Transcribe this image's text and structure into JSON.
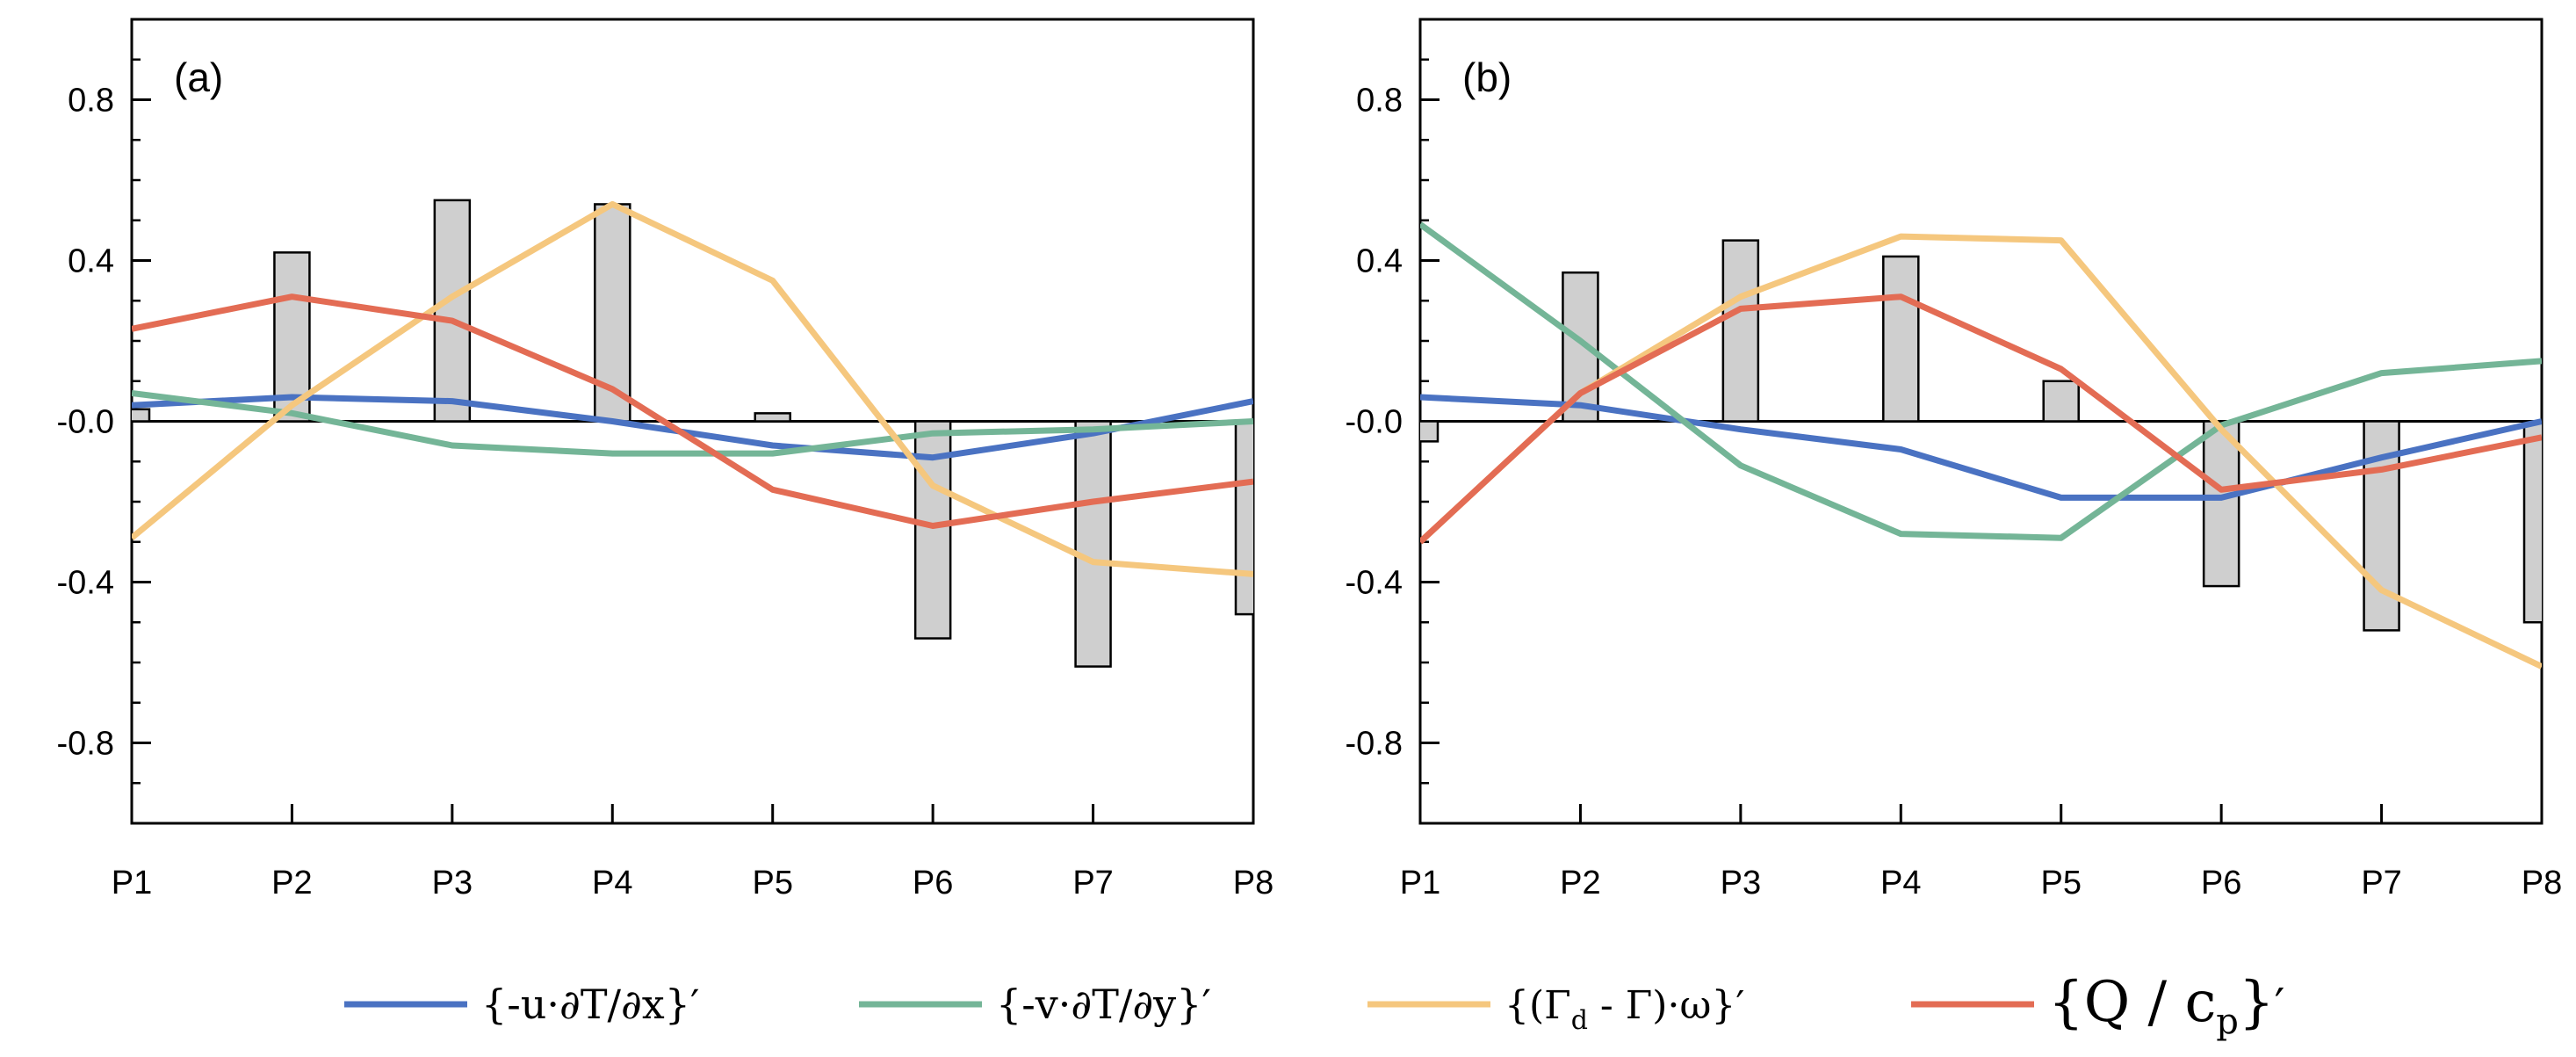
{
  "chart_data": [
    {
      "type": "bar+line",
      "panel_label": "(a)",
      "categories": [
        "P1",
        "P2",
        "P3",
        "P4",
        "P5",
        "P6",
        "P7",
        "P8"
      ],
      "ylim": [
        -1.0,
        1.0
      ],
      "yticks": [
        0.8,
        0.4,
        0.0,
        -0.4,
        -0.8
      ],
      "ytick_labels": [
        "0.8",
        "0.4",
        "-0.0",
        "-0.4",
        "-0.8"
      ],
      "bars": [
        0.03,
        0.42,
        0.55,
        0.54,
        0.02,
        -0.54,
        -0.61,
        -0.48
      ],
      "series": [
        {
          "key": "u",
          "name": "{-u·∂T/∂x}′",
          "color": "#4a72c2",
          "values": [
            0.04,
            0.06,
            0.05,
            0.0,
            -0.06,
            -0.09,
            -0.03,
            0.05
          ]
        },
        {
          "key": "v",
          "name": "{-v·∂T/∂y}′",
          "color": "#74b597",
          "values": [
            0.07,
            0.02,
            -0.06,
            -0.08,
            -0.08,
            -0.03,
            -0.02,
            0.0
          ]
        },
        {
          "key": "w",
          "name": "{(Γd - Γ)·ω}′",
          "color": "#f5c77e",
          "values": [
            -0.29,
            0.04,
            0.31,
            0.54,
            0.35,
            -0.16,
            -0.35,
            -0.38
          ]
        },
        {
          "key": "q",
          "name": "{Q / cp}′",
          "color": "#e36c54",
          "values": [
            0.23,
            0.31,
            0.25,
            0.08,
            -0.17,
            -0.26,
            -0.2,
            -0.15
          ]
        }
      ]
    },
    {
      "type": "bar+line",
      "panel_label": "(b)",
      "categories": [
        "P1",
        "P2",
        "P3",
        "P4",
        "P5",
        "P6",
        "P7",
        "P8"
      ],
      "ylim": [
        -1.0,
        1.0
      ],
      "yticks": [
        0.8,
        0.4,
        0.0,
        -0.4,
        -0.8
      ],
      "ytick_labels": [
        "0.8",
        "0.4",
        "-0.0",
        "-0.4",
        "-0.8"
      ],
      "bars": [
        -0.05,
        0.37,
        0.45,
        0.41,
        0.1,
        -0.41,
        -0.52,
        -0.5
      ],
      "series": [
        {
          "key": "u",
          "name": "{-u·∂T/∂x}′",
          "color": "#4a72c2",
          "values": [
            0.06,
            0.04,
            -0.02,
            -0.07,
            -0.19,
            -0.19,
            -0.09,
            0.0
          ]
        },
        {
          "key": "v",
          "name": "{-v·∂T/∂y}′",
          "color": "#74b597",
          "values": [
            0.49,
            0.2,
            -0.11,
            -0.28,
            -0.29,
            -0.01,
            0.12,
            0.15
          ]
        },
        {
          "key": "w",
          "name": "{(Γd - Γ)·ω}′",
          "color": "#f5c77e",
          "values": [
            -0.3,
            0.07,
            0.31,
            0.46,
            0.45,
            -0.02,
            -0.42,
            -0.61
          ]
        },
        {
          "key": "q",
          "name": "{Q / cp}′",
          "color": "#e36c54",
          "values": [
            -0.3,
            0.07,
            0.28,
            0.31,
            0.13,
            -0.17,
            -0.12,
            -0.04
          ]
        }
      ]
    }
  ],
  "legend": {
    "u": {
      "prefix": "{-u·∂T/∂x}",
      "prime": "′"
    },
    "v": {
      "prefix": "{-v·∂T/∂y}",
      "prime": "′"
    },
    "w": {
      "open": "{(Γ",
      "sub": "d",
      "rest": " - Γ)·ω}",
      "prime": "′"
    },
    "q": {
      "open": "{Q / c",
      "sub": "p",
      "close": "}",
      "prime": "′"
    }
  }
}
